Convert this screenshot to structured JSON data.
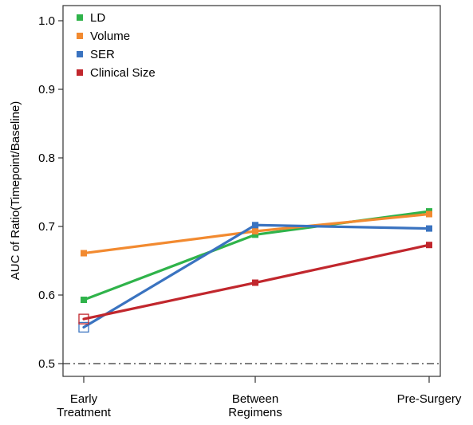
{
  "chart_data": {
    "type": "line",
    "title": "",
    "xlabel": "",
    "ylabel": "AUC of Ratio(Timepoint/Baseline)",
    "categories": [
      "Early\nTreatment",
      "Between\nRegimens",
      "Pre-Surgery"
    ],
    "ylim": [
      0.48,
      1.02
    ],
    "yticks": [
      0.5,
      0.6,
      0.7,
      0.8,
      0.9,
      1.0
    ],
    "ytick_labels": [
      "0.5",
      "0.6",
      "0.7",
      "0.8",
      "0.9",
      "1.0"
    ],
    "grid": false,
    "legend_position": "top-left",
    "reference_line": {
      "y": 0.5,
      "style": "dash-dot",
      "color": "#333333"
    },
    "series": [
      {
        "name": "LD",
        "color": "#2fb34a",
        "values": [
          0.593,
          0.688,
          0.722
        ]
      },
      {
        "name": "Volume",
        "color": "#f28a30",
        "values": [
          0.661,
          0.693,
          0.718
        ]
      },
      {
        "name": "SER",
        "color": "#3a73c0",
        "values": [
          0.553,
          0.702,
          0.697
        ]
      },
      {
        "name": "Clinical Size",
        "color": "#c1272d",
        "values": [
          0.565,
          0.618,
          0.673
        ]
      }
    ],
    "annotations": [
      {
        "series": "Clinical Size",
        "category_index": 0,
        "marker": "open-square"
      },
      {
        "series": "SER",
        "category_index": 0,
        "marker": "open-square"
      }
    ]
  }
}
